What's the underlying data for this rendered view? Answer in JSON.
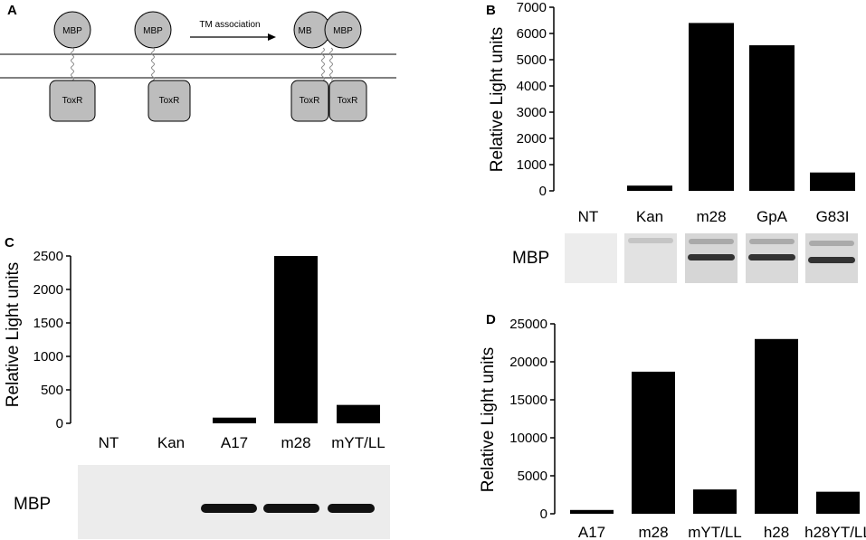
{
  "panel_a": {
    "letter": "A",
    "protein_label": "MBP",
    "anchor_label": "ToxR",
    "arrow_label": "TM association"
  },
  "western_label": "MBP",
  "chart_data": [
    {
      "panel": "B",
      "type": "bar",
      "categories": [
        "NT",
        "Kan",
        "m28",
        "GpA",
        "G83I"
      ],
      "values": [
        0,
        200,
        6400,
        5550,
        700
      ],
      "ylabel": "Relative Light units",
      "ylim": [
        0,
        7000
      ],
      "yticks": [
        0,
        1000,
        2000,
        3000,
        4000,
        5000,
        6000,
        7000
      ],
      "western_blot_bands": [
        "none",
        "faint",
        "strong",
        "strong",
        "strong"
      ]
    },
    {
      "panel": "C",
      "type": "bar",
      "categories": [
        "NT",
        "Kan",
        "A17",
        "m28",
        "mYT/LL"
      ],
      "values": [
        0,
        0,
        85,
        2500,
        275
      ],
      "ylabel": "Relative Light units",
      "ylim": [
        0,
        2500
      ],
      "yticks": [
        0,
        500,
        1000,
        1500,
        2000,
        2500
      ],
      "western_blot_bands": [
        "none",
        "none",
        "strong",
        "strong",
        "strong"
      ]
    },
    {
      "panel": "D",
      "type": "bar",
      "categories": [
        "A17",
        "m28",
        "mYT/LL",
        "h28",
        "h28YT/LL"
      ],
      "values": [
        500,
        18700,
        3200,
        23000,
        2900
      ],
      "ylabel": "Relative Light units",
      "ylim": [
        0,
        25000
      ],
      "yticks": [
        0,
        5000,
        10000,
        15000,
        20000,
        25000
      ]
    }
  ]
}
